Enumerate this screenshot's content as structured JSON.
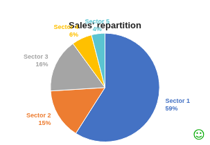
{
  "chart_data": {
    "type": "pie",
    "title": "Sales' repartition",
    "categories": [
      "Sector 1",
      "Sector 2",
      "Sector 3",
      "Sector 4",
      "Sector 5"
    ],
    "values": [
      59,
      15,
      16,
      6,
      4
    ],
    "value_labels": [
      "59%",
      "15%",
      "16%",
      "6%",
      "4%"
    ],
    "colors": [
      "#4472C4",
      "#ED7D31",
      "#A5A5A5",
      "#FFC000",
      "#5BC4D1"
    ],
    "data_labels": true,
    "annotations": [
      {
        "text": "☺",
        "color": "#00AA00"
      }
    ]
  }
}
